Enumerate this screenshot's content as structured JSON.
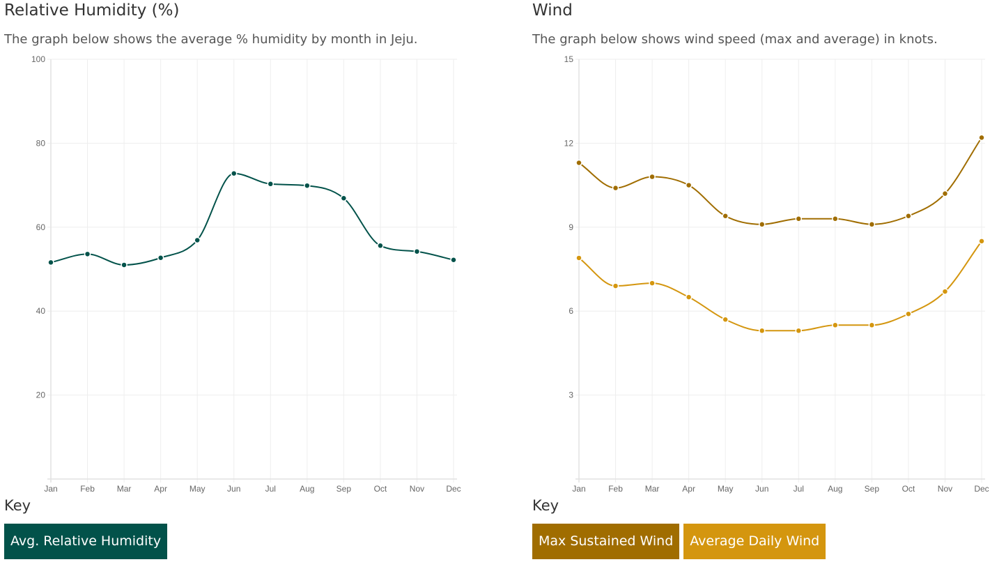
{
  "humidity": {
    "title": "Relative Humidity (%)",
    "subtitle": "The graph below shows the average % humidity by month in Jeju.",
    "key_title": "Key",
    "key_items": [
      {
        "label": "Avg. Relative Humidity",
        "color": "#02524a"
      }
    ]
  },
  "wind": {
    "title": "Wind",
    "subtitle": "The graph below shows wind speed (max and average) in knots.",
    "key_title": "Key",
    "key_items": [
      {
        "label": "Max Sustained Wind",
        "color": "#a06d00"
      },
      {
        "label": "Average Daily Wind",
        "color": "#d4960f"
      }
    ]
  },
  "chart_data": [
    {
      "type": "line",
      "categories": [
        "Jan",
        "Feb",
        "Mar",
        "Apr",
        "May",
        "Jun",
        "Jul",
        "Aug",
        "Sep",
        "Oct",
        "Nov",
        "Dec"
      ],
      "series": [
        {
          "color": "#02524a",
          "values": [
            51.6,
            53.6,
            51.0,
            52.7,
            56.9,
            72.8,
            70.3,
            69.9,
            66.9,
            55.6,
            54.2,
            52.2
          ]
        }
      ],
      "ylim": [
        0,
        100
      ],
      "yticks": [
        20,
        40,
        60,
        80,
        100
      ],
      "grid": true,
      "xlabel": "",
      "ylabel": ""
    },
    {
      "type": "line",
      "categories": [
        "Jan",
        "Feb",
        "Mar",
        "Apr",
        "May",
        "Jun",
        "Jul",
        "Aug",
        "Sep",
        "Oct",
        "Nov",
        "Dec"
      ],
      "series": [
        {
          "name": "Max Sustained Wind",
          "color": "#a06d00",
          "values": [
            11.3,
            10.4,
            10.8,
            10.5,
            9.4,
            9.1,
            9.3,
            9.3,
            9.1,
            9.4,
            10.2,
            12.2
          ]
        },
        {
          "name": "Average Daily Wind",
          "color": "#d4960f",
          "values": [
            7.9,
            6.9,
            7.0,
            6.5,
            5.7,
            5.3,
            5.3,
            5.5,
            5.5,
            5.9,
            6.7,
            8.5
          ]
        }
      ],
      "ylim": [
        0,
        15
      ],
      "yticks": [
        3,
        6,
        9,
        12,
        15
      ],
      "grid": true,
      "xlabel": "",
      "ylabel": ""
    }
  ]
}
